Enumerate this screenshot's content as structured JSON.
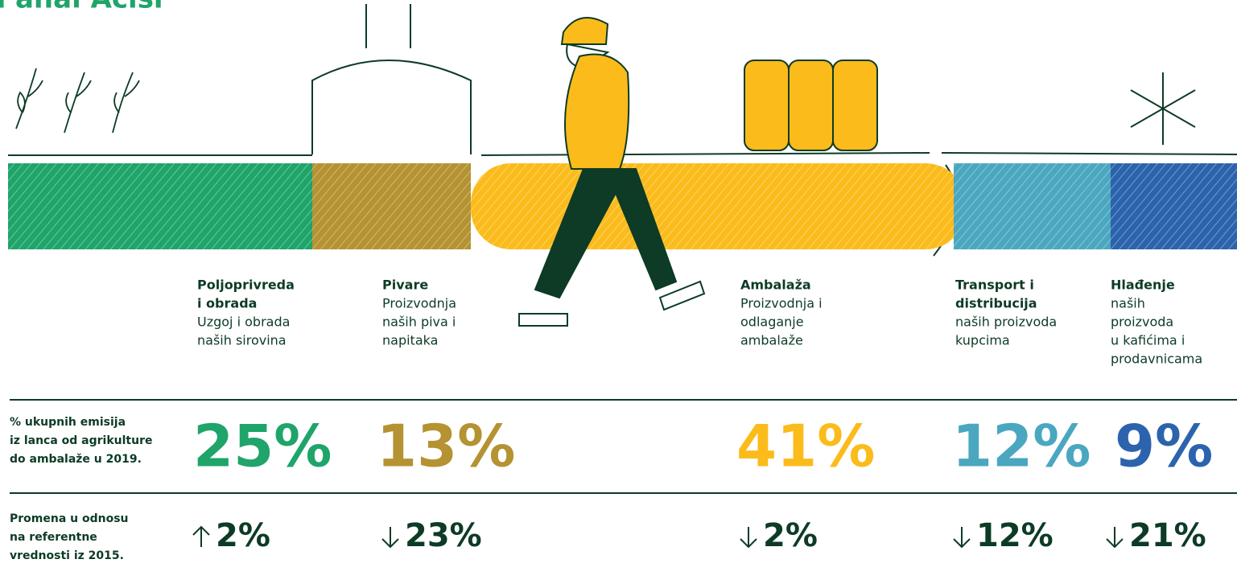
{
  "header": {
    "title": "na anal Acisi"
  },
  "stages": [
    {
      "name_lines": [
        "Poljoprivreda",
        "i obrada"
      ],
      "desc_lines": [
        "Uzgoj i obrada",
        "naših sirovina"
      ],
      "color": "#1fa46a",
      "share": "25%",
      "change": "2%",
      "direction": "up"
    },
    {
      "name_lines": [
        "Pivare"
      ],
      "desc_lines": [
        "Proizvodnja",
        "naših piva i",
        "napitaka"
      ],
      "color": "#b59232",
      "share": "13%",
      "change": "23%",
      "direction": "down"
    },
    {
      "name_lines": [
        "Ambalaža"
      ],
      "desc_lines": [
        "Proizvodnja i",
        "odlaganje",
        "ambalaže"
      ],
      "color": "#fbbb1b",
      "share": "41%",
      "change": "2%",
      "direction": "down"
    },
    {
      "name_lines": [
        "Transport i",
        "distribucija"
      ],
      "desc_lines": [
        "naših proizvoda",
        "kupcima"
      ],
      "color": "#4aa7bf",
      "share": "12%",
      "change": "12%",
      "direction": "down"
    },
    {
      "name_lines": [
        "Hlađenje"
      ],
      "desc_lines": [
        "naših",
        "proizvoda",
        "u kafićima i",
        "prodavnicama"
      ],
      "color": "#2c63ad",
      "share": "9%",
      "change": "21%",
      "direction": "down"
    }
  ],
  "rows": {
    "share_label_lines": [
      "% ukupnih emisija",
      "iz lanca od agrikulture",
      "do ambalaže u 2019."
    ],
    "change_label_lines": [
      "Promena u odnosu",
      "na referentne",
      "vrednosti iz 2015."
    ]
  }
}
